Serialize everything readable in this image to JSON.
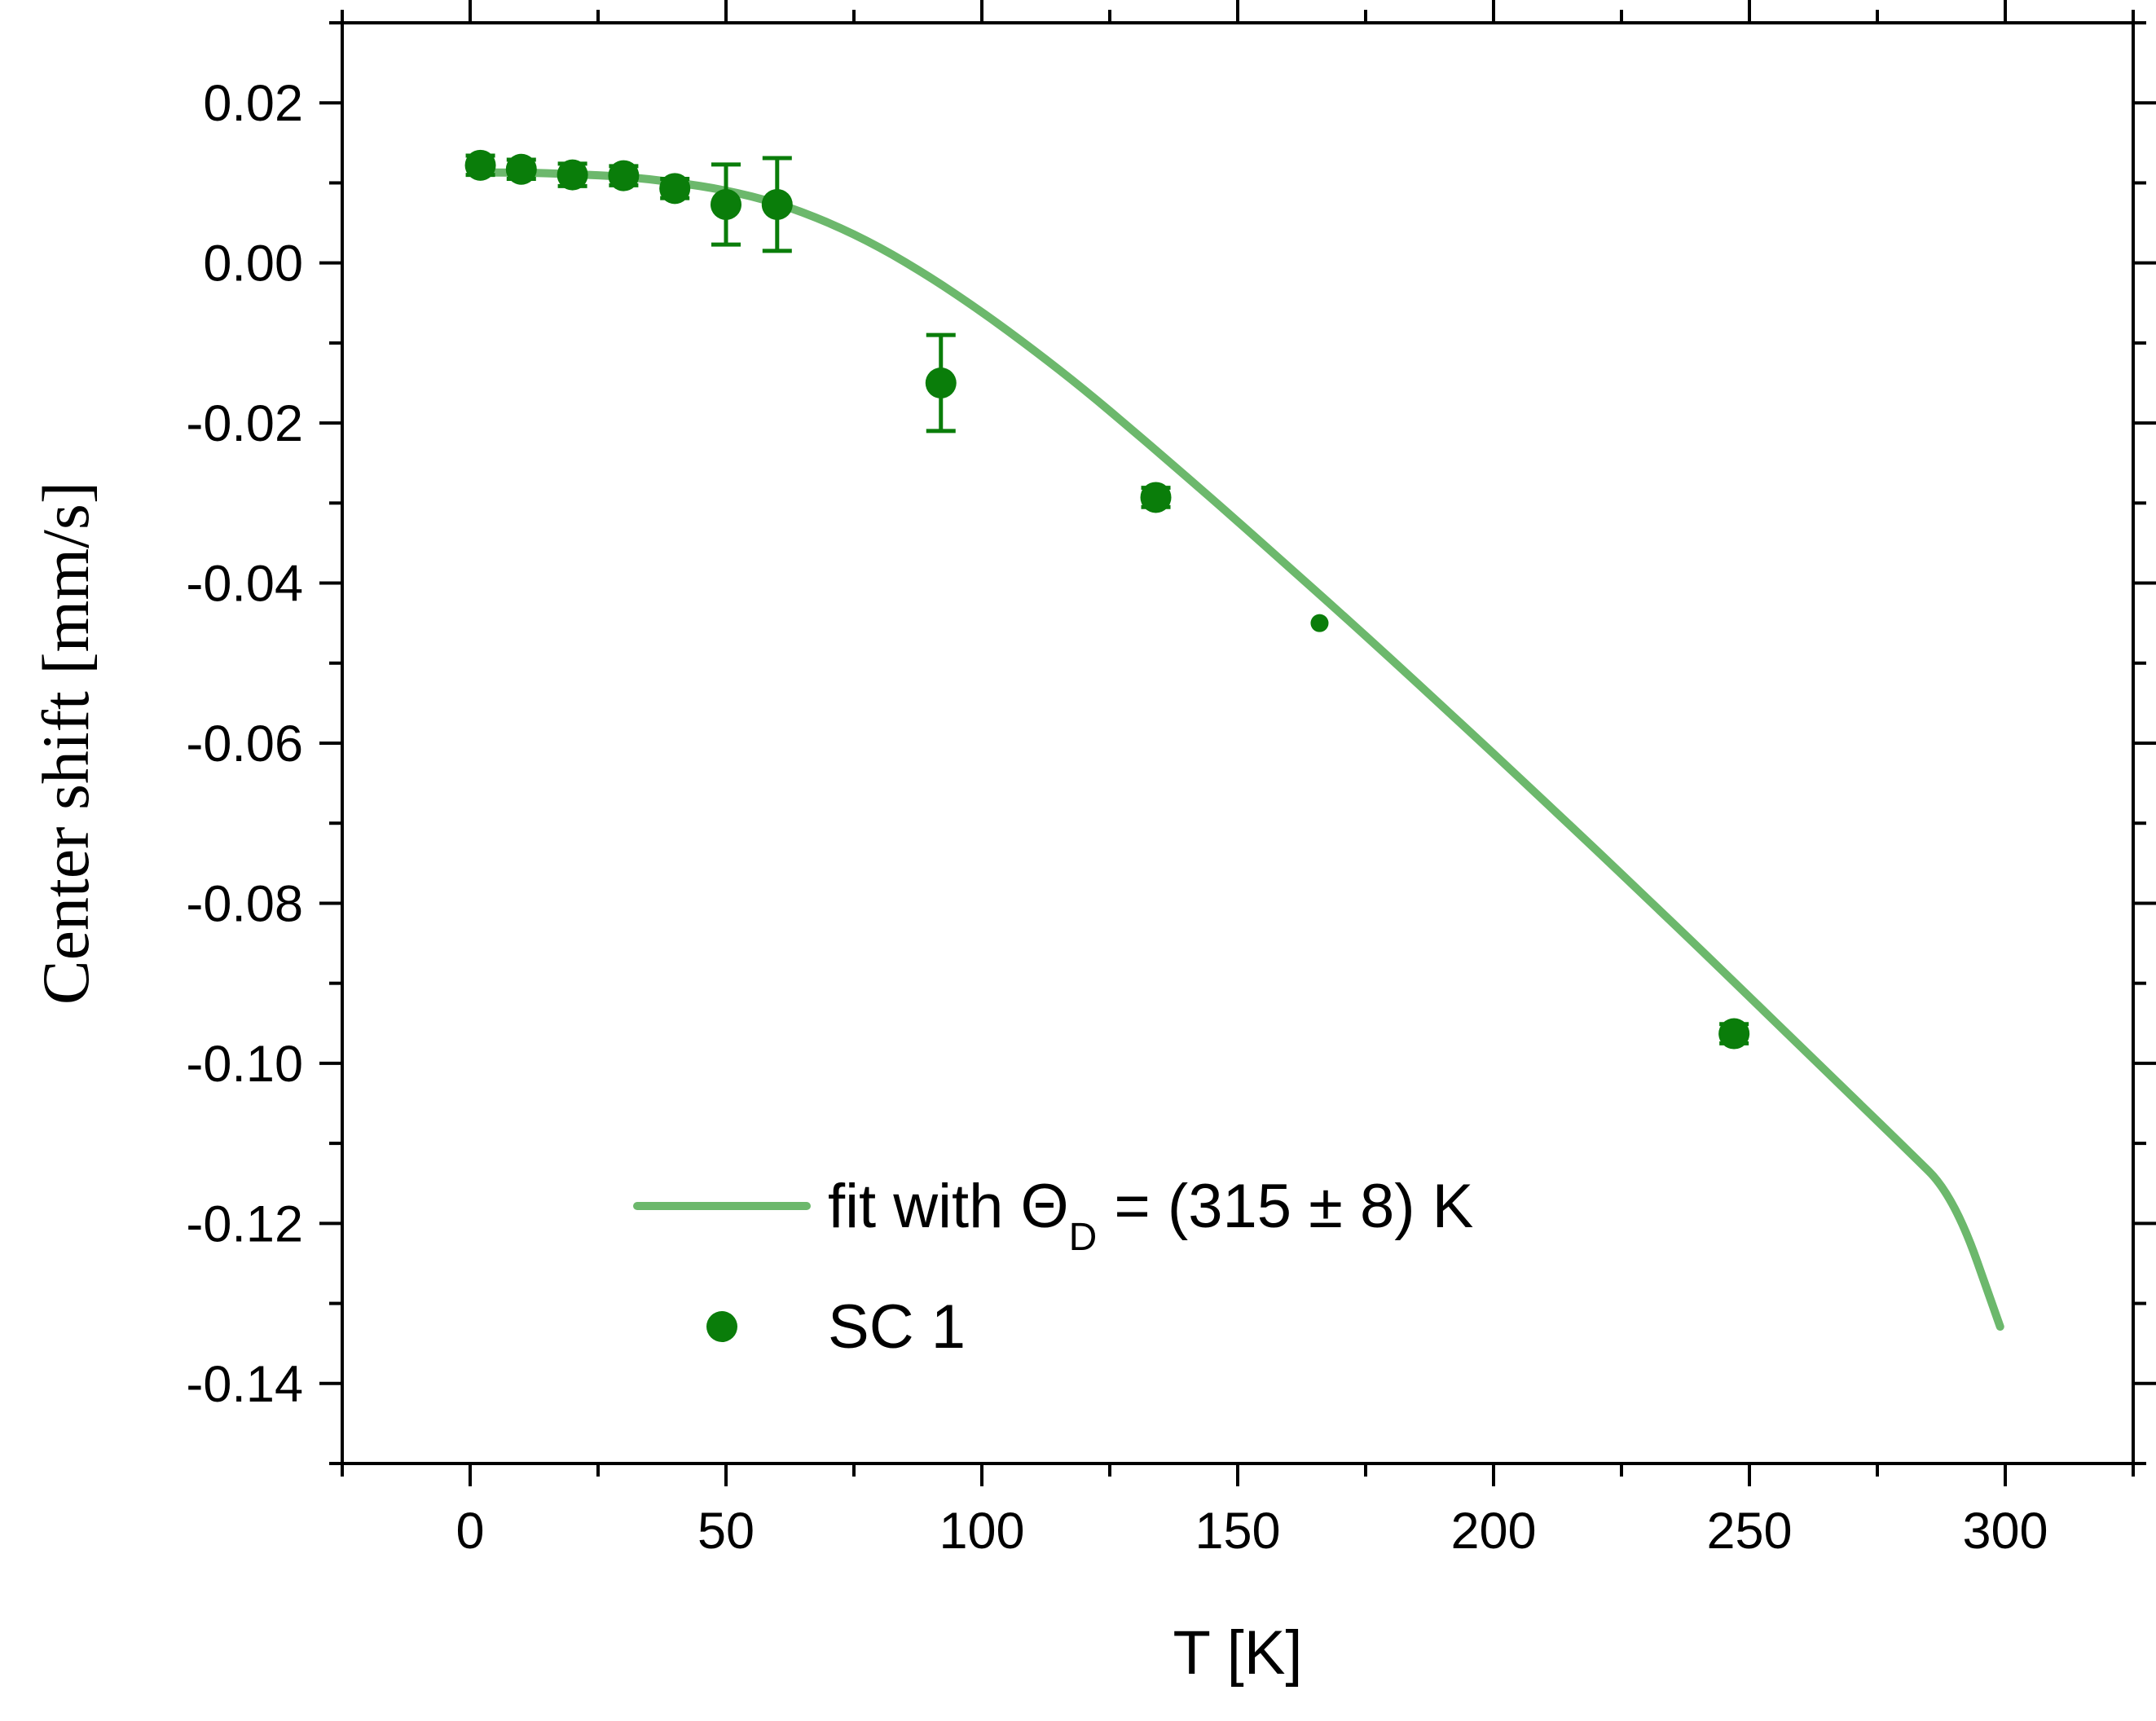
{
  "chart_data": {
    "type": "scatter",
    "title": "",
    "xlabel": "T  [K]",
    "ylabel": "Center shift [mm/s]",
    "xlim": [
      -25,
      325
    ],
    "ylim": [
      -0.15,
      0.03
    ],
    "x_ticks": [
      0,
      50,
      100,
      150,
      200,
      250,
      300
    ],
    "x_tick_labels": [
      "0",
      "50",
      "100",
      "150",
      "200",
      "250",
      "300"
    ],
    "y_ticks": [
      0.02,
      0.0,
      -0.02,
      -0.04,
      -0.06,
      -0.08,
      -0.1,
      -0.12,
      -0.14
    ],
    "y_tick_labels": [
      "0.02",
      "0.00",
      "-0.02",
      "-0.04",
      "-0.06",
      "-0.08",
      "-0.10",
      "-0.12",
      "-0.14"
    ],
    "grid": false,
    "legend_position": "bottom-center",
    "colors": {
      "points": "#0a7d0a",
      "fit": "#6cb86c",
      "axes": "#000000"
    },
    "series": [
      {
        "name": "fit with ΘD = (315 ± 8) K",
        "legend_main": "fit with Θ",
        "legend_sub": "D",
        "legend_tail": " = (315 ± 8) K",
        "kind": "line",
        "x": [
          2,
          10,
          20,
          30,
          40,
          50,
          60,
          70,
          80,
          90,
          100,
          110,
          120,
          130,
          140,
          150,
          160,
          170,
          180,
          190,
          200,
          210,
          220,
          230,
          240,
          250,
          260,
          270,
          280,
          290,
          299
        ],
        "y": [
          0.0113,
          0.0113,
          0.0111,
          0.0108,
          0.0101,
          0.0091,
          0.0075,
          0.0051,
          0.002,
          -0.0018,
          -0.0061,
          -0.0108,
          -0.0158,
          -0.0212,
          -0.0267,
          -0.0323,
          -0.038,
          -0.0437,
          -0.0495,
          -0.0554,
          -0.0613,
          -0.0673,
          -0.0733,
          -0.0794,
          -0.0855,
          -0.0917,
          -0.0979,
          -0.1041,
          -0.1103,
          -0.1166,
          -0.1329
        ]
      },
      {
        "name": "SC 1",
        "kind": "scatter",
        "points": [
          {
            "x": 2,
            "y": 0.0122,
            "err": 0.0012
          },
          {
            "x": 10,
            "y": 0.0117,
            "err": 0.0012
          },
          {
            "x": 20,
            "y": 0.011,
            "err": 0.0014
          },
          {
            "x": 30,
            "y": 0.0109,
            "err": 0.0012
          },
          {
            "x": 40,
            "y": 0.0093,
            "err": 0.0012
          },
          {
            "x": 50,
            "y": 0.0073,
            "err": 0.005
          },
          {
            "x": 60,
            "y": 0.0073,
            "err": 0.0058
          },
          {
            "x": 92,
            "y": -0.015,
            "err": 0.006
          },
          {
            "x": 134,
            "y": -0.0293,
            "err": 0.0012
          },
          {
            "x": 166,
            "y": -0.045,
            "err": 0.0,
            "small": true
          },
          {
            "x": 247,
            "y": -0.0963,
            "err": 0.0012
          }
        ]
      }
    ]
  }
}
